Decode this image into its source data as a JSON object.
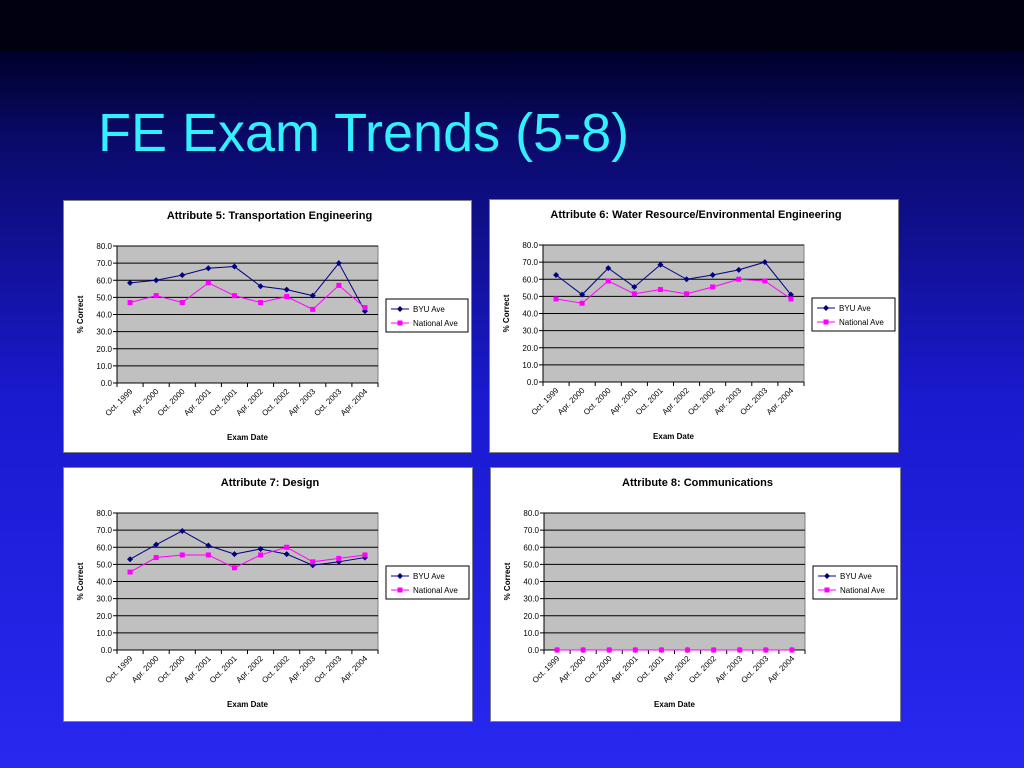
{
  "slide": {
    "title": "FE Exam Trends (5-8)"
  },
  "colors": {
    "byu": "#000080",
    "national": "#ff00ff",
    "plot_bg": "#c0c0c0"
  },
  "chart_data": [
    {
      "type": "line",
      "title": "Attribute 5: Transportation Engineering",
      "xlabel": "Exam Date",
      "ylabel": "% Correct",
      "ylim": [
        0,
        80
      ],
      "yticks": [
        "0.0",
        "10.0",
        "20.0",
        "30.0",
        "40.0",
        "50.0",
        "60.0",
        "70.0",
        "80.0"
      ],
      "grid": true,
      "legend": "right",
      "categories": [
        "Oct. 1999",
        "Apr. 2000",
        "Oct. 2000",
        "Apr. 2001",
        "Oct. 2001",
        "Apr. 2002",
        "Oct. 2002",
        "Apr. 2003",
        "Oct. 2003",
        "Apr. 2004"
      ],
      "series": [
        {
          "name": "BYU Ave",
          "values": [
            58.5,
            60,
            63,
            67,
            68,
            56.5,
            54.5,
            51,
            70,
            42
          ]
        },
        {
          "name": "National Ave",
          "values": [
            47,
            51,
            47,
            58.5,
            51,
            47,
            50.5,
            43,
            57,
            44
          ]
        }
      ]
    },
    {
      "type": "line",
      "title": "Attribute 6: Water Resource/Environmental Engineering",
      "xlabel": "Exam Date",
      "ylabel": "% Correct",
      "ylim": [
        0,
        80
      ],
      "yticks": [
        "0.0",
        "10.0",
        "20.0",
        "30.0",
        "40.0",
        "50.0",
        "60.0",
        "70.0",
        "80.0"
      ],
      "grid": true,
      "legend": "right",
      "categories": [
        "Oct. 1999",
        "Apr. 2000",
        "Oct. 2000",
        "Apr. 2001",
        "Oct. 2001",
        "Apr. 2002",
        "Oct. 2002",
        "Apr. 2003",
        "Oct. 2003",
        "Apr. 2004"
      ],
      "series": [
        {
          "name": "BYU Ave",
          "values": [
            62.5,
            51,
            66.5,
            55.5,
            68.5,
            60,
            62.5,
            65.5,
            70,
            51
          ]
        },
        {
          "name": "National Ave",
          "values": [
            48.5,
            46,
            59,
            51.5,
            54,
            51.5,
            55.5,
            60,
            59,
            48.5
          ]
        }
      ]
    },
    {
      "type": "line",
      "title": "Attribute 7: Design",
      "xlabel": "Exam Date",
      "ylabel": "% Correct",
      "ylim": [
        0,
        80
      ],
      "yticks": [
        "0.0",
        "10.0",
        "20.0",
        "30.0",
        "40.0",
        "50.0",
        "60.0",
        "70.0",
        "80.0"
      ],
      "grid": true,
      "legend": "right",
      "categories": [
        "Oct. 1999",
        "Apr. 2000",
        "Oct. 2000",
        "Apr. 2001",
        "Oct. 2001",
        "Apr. 2002",
        "Oct. 2002",
        "Apr. 2003",
        "Oct. 2003",
        "Apr. 2004"
      ],
      "series": [
        {
          "name": "BYU Ave",
          "values": [
            53,
            61.5,
            69.5,
            61,
            56,
            59,
            56,
            49.5,
            51.5,
            54
          ]
        },
        {
          "name": "National Ave",
          "values": [
            45.5,
            54,
            55.5,
            55.5,
            48,
            55.5,
            60,
            51.5,
            53.5,
            55.5
          ]
        }
      ]
    },
    {
      "type": "line",
      "title": "Attribute 8: Communications",
      "xlabel": "Exam Date",
      "ylabel": "% Correct",
      "ylim": [
        0,
        80
      ],
      "yticks": [
        "0.0",
        "10.0",
        "20.0",
        "30.0",
        "40.0",
        "50.0",
        "60.0",
        "70.0",
        "80.0"
      ],
      "grid": true,
      "legend": "right",
      "categories": [
        "Oct. 1999",
        "Apr. 2000",
        "Oct. 2000",
        "Apr. 2001",
        "Oct. 2001",
        "Apr. 2002",
        "Oct. 2002",
        "Apr. 2003",
        "Oct. 2003",
        "Apr. 2004"
      ],
      "series": [
        {
          "name": "BYU Ave",
          "values": [
            0,
            0,
            0,
            0,
            0,
            0,
            0,
            0,
            0,
            0
          ]
        },
        {
          "name": "National Ave",
          "values": [
            0,
            0,
            0,
            0,
            0,
            0,
            0,
            0,
            0,
            0
          ]
        }
      ]
    }
  ]
}
